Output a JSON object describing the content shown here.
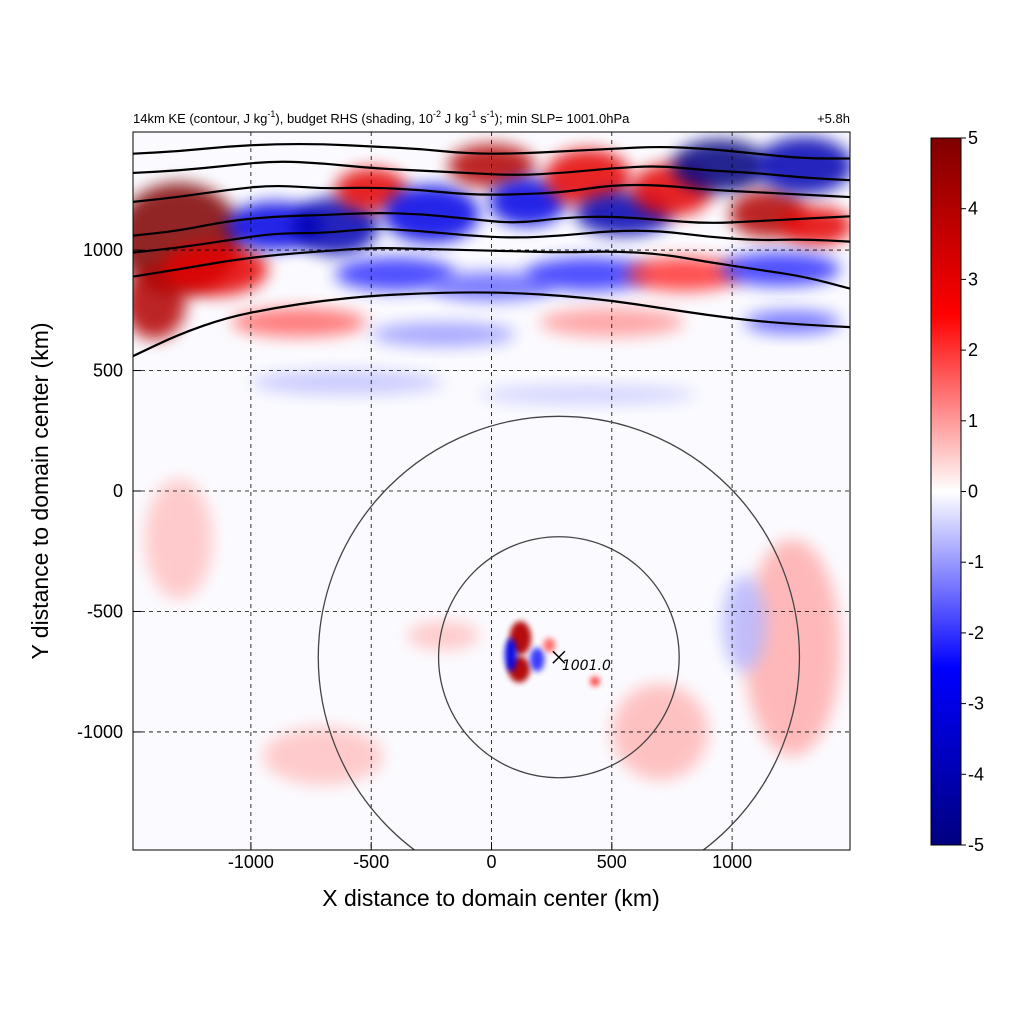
{
  "chart_data": {
    "type": "heatmap",
    "title_parts": {
      "p1": "14km KE (contour, J kg",
      "p1sup": "-1",
      "p2": "), budget RHS (shading, 10",
      "p2sup": "-2",
      "p3": " J kg",
      "p3sup": "-1",
      "p4": " s",
      "p4sup": "-1",
      "p5": "); min SLP= 1001.0hPa"
    },
    "time_label": "+5.8h",
    "xlabel": "X distance to domain center (km)",
    "ylabel": "Y distance to domain center (km)",
    "xlim": [
      -1490,
      1490
    ],
    "ylim": [
      -1490,
      1490
    ],
    "x_ticks": [
      -1000,
      -500,
      0,
      500,
      1000
    ],
    "y_ticks": [
      1000,
      500,
      0,
      -500,
      -1000
    ],
    "x_tick_labels": [
      "-1000",
      "-500",
      "0",
      "500",
      "1000"
    ],
    "y_tick_labels": [
      "1000",
      "500",
      "0",
      "-500",
      "-1000"
    ],
    "grid": true,
    "colorbar": {
      "min": -5,
      "max": 5,
      "ticks": [
        5,
        4,
        3,
        2,
        1,
        0,
        -1,
        -2,
        -3,
        -4,
        -5
      ],
      "tick_labels": [
        "5",
        "4",
        "3",
        "2",
        "1",
        "0",
        "-1",
        "-2",
        "-3",
        "-4",
        "-5"
      ],
      "colors": [
        "#00007f",
        "#0000ff",
        "#ffffff",
        "#ff0000",
        "#7f0000"
      ]
    },
    "storm_center": {
      "x": 280,
      "y": -690,
      "label": "1001.0"
    },
    "range_rings_km": [
      500,
      1000
    ],
    "ke_contours": [
      {
        "points": [
          [
            -1490,
            560
          ],
          [
            -1300,
            650
          ],
          [
            -1100,
            720
          ],
          [
            -900,
            760
          ],
          [
            -700,
            790
          ],
          [
            -500,
            810
          ],
          [
            -300,
            820
          ],
          [
            -100,
            825
          ],
          [
            100,
            822
          ],
          [
            300,
            810
          ],
          [
            500,
            790
          ],
          [
            700,
            760
          ],
          [
            900,
            730
          ],
          [
            1100,
            705
          ],
          [
            1300,
            690
          ],
          [
            1490,
            680
          ]
        ]
      },
      {
        "points": [
          [
            -1490,
            890
          ],
          [
            -1300,
            920
          ],
          [
            -1100,
            955
          ],
          [
            -900,
            980
          ],
          [
            -700,
            995
          ],
          [
            -500,
            1010
          ],
          [
            -300,
            1005
          ],
          [
            -100,
            1000
          ],
          [
            100,
            995
          ],
          [
            300,
            990
          ],
          [
            500,
            995
          ],
          [
            700,
            985
          ],
          [
            900,
            950
          ],
          [
            1100,
            920
          ],
          [
            1300,
            890
          ],
          [
            1490,
            840
          ]
        ]
      },
      {
        "points": [
          [
            -1490,
            990
          ],
          [
            -1300,
            1010
          ],
          [
            -1100,
            1040
          ],
          [
            -900,
            1070
          ],
          [
            -700,
            1070
          ],
          [
            -500,
            1090
          ],
          [
            -300,
            1080
          ],
          [
            -100,
            1060
          ],
          [
            100,
            1050
          ],
          [
            300,
            1060
          ],
          [
            500,
            1080
          ],
          [
            700,
            1080
          ],
          [
            900,
            1055
          ],
          [
            1100,
            1040
          ],
          [
            1300,
            1045
          ],
          [
            1490,
            1035
          ]
        ]
      },
      {
        "points": [
          [
            -1490,
            1060
          ],
          [
            -1300,
            1080
          ],
          [
            -1100,
            1120
          ],
          [
            -900,
            1140
          ],
          [
            -700,
            1145
          ],
          [
            -500,
            1155
          ],
          [
            -300,
            1150
          ],
          [
            -100,
            1130
          ],
          [
            100,
            1110
          ],
          [
            300,
            1135
          ],
          [
            500,
            1140
          ],
          [
            700,
            1125
          ],
          [
            900,
            1110
          ],
          [
            1100,
            1120
          ],
          [
            1300,
            1130
          ],
          [
            1490,
            1140
          ]
        ]
      },
      {
        "points": [
          [
            -1490,
            1200
          ],
          [
            -1300,
            1220
          ],
          [
            -1100,
            1250
          ],
          [
            -900,
            1270
          ],
          [
            -700,
            1255
          ],
          [
            -500,
            1260
          ],
          [
            -300,
            1250
          ],
          [
            -100,
            1230
          ],
          [
            100,
            1230
          ],
          [
            300,
            1240
          ],
          [
            500,
            1270
          ],
          [
            700,
            1270
          ],
          [
            900,
            1250
          ],
          [
            1100,
            1240
          ],
          [
            1300,
            1230
          ],
          [
            1490,
            1220
          ]
        ]
      },
      {
        "points": [
          [
            -1490,
            1320
          ],
          [
            -1300,
            1330
          ],
          [
            -1100,
            1350
          ],
          [
            -900,
            1370
          ],
          [
            -700,
            1360
          ],
          [
            -500,
            1340
          ],
          [
            -300,
            1330
          ],
          [
            -100,
            1320
          ],
          [
            100,
            1310
          ],
          [
            300,
            1320
          ],
          [
            500,
            1340
          ],
          [
            700,
            1350
          ],
          [
            900,
            1330
          ],
          [
            1100,
            1320
          ],
          [
            1300,
            1300
          ],
          [
            1490,
            1290
          ]
        ]
      },
      {
        "points": [
          [
            -1490,
            1400
          ],
          [
            -1300,
            1410
          ],
          [
            -1100,
            1430
          ],
          [
            -900,
            1440
          ],
          [
            -700,
            1440
          ],
          [
            -500,
            1430
          ],
          [
            -300,
            1420
          ],
          [
            -100,
            1400
          ],
          [
            100,
            1400
          ],
          [
            300,
            1410
          ],
          [
            500,
            1420
          ],
          [
            700,
            1430
          ],
          [
            900,
            1420
          ],
          [
            1100,
            1400
          ],
          [
            1300,
            1380
          ],
          [
            1490,
            1380
          ]
        ]
      }
    ],
    "shading_features": [
      {
        "x": -1300,
        "y": 1050,
        "rx": 260,
        "ry": 230,
        "value": 5
      },
      {
        "x": -1400,
        "y": 780,
        "rx": 130,
        "ry": 150,
        "value": 4
      },
      {
        "x": -1150,
        "y": 920,
        "rx": 220,
        "ry": 110,
        "value": 3
      },
      {
        "x": -900,
        "y": 1100,
        "rx": 200,
        "ry": 100,
        "value": -3
      },
      {
        "x": -650,
        "y": 1100,
        "rx": 180,
        "ry": 120,
        "value": -4
      },
      {
        "x": -500,
        "y": 1250,
        "rx": 150,
        "ry": 90,
        "value": 3
      },
      {
        "x": -250,
        "y": 1150,
        "rx": 200,
        "ry": 120,
        "value": -3
      },
      {
        "x": 0,
        "y": 1350,
        "rx": 180,
        "ry": 90,
        "value": 4
      },
      {
        "x": 150,
        "y": 1200,
        "rx": 160,
        "ry": 100,
        "value": -3
      },
      {
        "x": 400,
        "y": 1300,
        "rx": 180,
        "ry": 120,
        "value": 3
      },
      {
        "x": 550,
        "y": 1150,
        "rx": 200,
        "ry": 90,
        "value": -4
      },
      {
        "x": 750,
        "y": 1250,
        "rx": 170,
        "ry": 110,
        "value": 3
      },
      {
        "x": 950,
        "y": 1350,
        "rx": 200,
        "ry": 110,
        "value": -5
      },
      {
        "x": 1150,
        "y": 1150,
        "rx": 160,
        "ry": 100,
        "value": 4
      },
      {
        "x": 1300,
        "y": 1350,
        "rx": 200,
        "ry": 120,
        "value": -4
      },
      {
        "x": 1350,
        "y": 1100,
        "rx": 150,
        "ry": 80,
        "value": 3
      },
      {
        "x": -400,
        "y": 900,
        "rx": 250,
        "ry": 70,
        "value": -2
      },
      {
        "x": 0,
        "y": 850,
        "rx": 260,
        "ry": 60,
        "value": -1.5
      },
      {
        "x": 400,
        "y": 900,
        "rx": 260,
        "ry": 70,
        "value": -2
      },
      {
        "x": 800,
        "y": 900,
        "rx": 240,
        "ry": 70,
        "value": 2
      },
      {
        "x": 1200,
        "y": 920,
        "rx": 250,
        "ry": 70,
        "value": -2
      },
      {
        "x": -800,
        "y": 700,
        "rx": 280,
        "ry": 60,
        "value": 1.5
      },
      {
        "x": -200,
        "y": 650,
        "rx": 300,
        "ry": 50,
        "value": -1
      },
      {
        "x": 500,
        "y": 700,
        "rx": 300,
        "ry": 60,
        "value": 1
      },
      {
        "x": 1250,
        "y": 700,
        "rx": 200,
        "ry": 50,
        "value": -1.5
      },
      {
        "x": -600,
        "y": 450,
        "rx": 400,
        "ry": 50,
        "value": -0.6
      },
      {
        "x": 400,
        "y": 400,
        "rx": 450,
        "ry": 40,
        "value": -0.5
      },
      {
        "x": -1300,
        "y": -200,
        "rx": 140,
        "ry": 250,
        "value": 0.6
      },
      {
        "x": 1250,
        "y": -650,
        "rx": 200,
        "ry": 450,
        "value": 0.8
      },
      {
        "x": 1050,
        "y": -550,
        "rx": 90,
        "ry": 200,
        "value": -0.7
      },
      {
        "x": 120,
        "y": -610,
        "rx": 45,
        "ry": 70,
        "value": 4
      },
      {
        "x": 115,
        "y": -740,
        "rx": 45,
        "ry": 55,
        "value": 4
      },
      {
        "x": 80,
        "y": -680,
        "rx": 25,
        "ry": 70,
        "value": -3
      },
      {
        "x": 190,
        "y": -700,
        "rx": 30,
        "ry": 50,
        "value": -2
      },
      {
        "x": 240,
        "y": -640,
        "rx": 25,
        "ry": 30,
        "value": 1.5
      },
      {
        "x": 430,
        "y": -790,
        "rx": 20,
        "ry": 20,
        "value": 2
      },
      {
        "x": -200,
        "y": -600,
        "rx": 150,
        "ry": 60,
        "value": 0.6
      },
      {
        "x": -700,
        "y": -1100,
        "rx": 250,
        "ry": 120,
        "value": 0.6
      },
      {
        "x": 700,
        "y": -1000,
        "rx": 200,
        "ry": 200,
        "value": 0.7
      }
    ]
  }
}
